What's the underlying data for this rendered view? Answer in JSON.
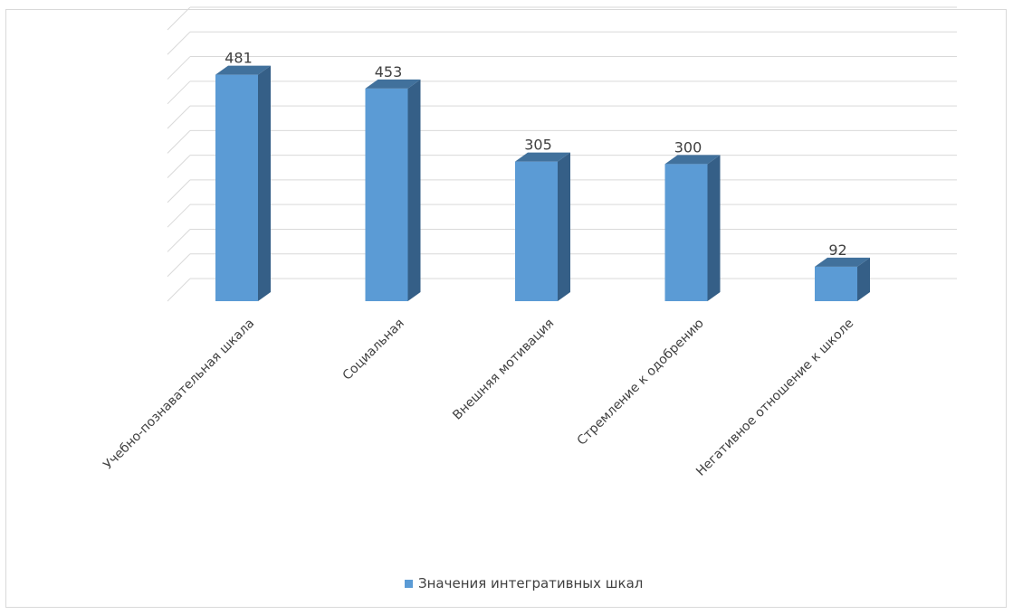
{
  "chart_data": {
    "type": "bar",
    "title": "",
    "xlabel": "",
    "ylabel": "",
    "categories": [
      "Учебно-познавательная шкала",
      "Социальная",
      "Внешняя мотивация",
      "Стремление к одобрению",
      "Негативное отношение к школе"
    ],
    "series": [
      {
        "name": "Значения интегративных шкал",
        "values": [
          481,
          453,
          305,
          300,
          92
        ]
      }
    ],
    "ylim": [
      0,
      550
    ],
    "y_axis_labels_shown": false,
    "grid": true,
    "bar_style": "3d-column",
    "legend_position": "bottom",
    "colors": {
      "bar_front": "#5b9bd5",
      "bar_side": "#355f87",
      "bar_top": "#41719c",
      "grid": "#d9d9d9",
      "text": "#404040"
    }
  }
}
